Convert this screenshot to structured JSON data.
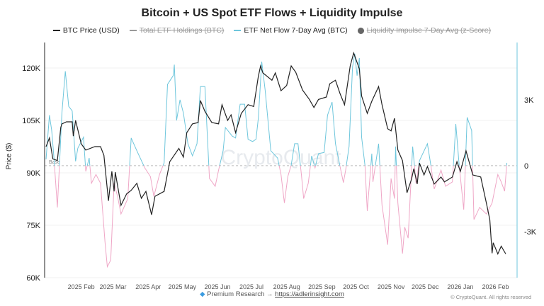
{
  "chart_data": {
    "type": "line",
    "title": "Bitcoin + US Spot ETF Flows + Liquidity Impulse",
    "ylabel": "Price ($)",
    "ylim": [
      60000,
      127300
    ],
    "y2lim": [
      -5100,
      5610
    ],
    "xlim": [
      "2025-01-01",
      "2026-02-20"
    ],
    "grid": true,
    "legend_position": "top",
    "watermark": "CryptoQuant",
    "baseline_label": "Base",
    "y_ticks": [
      {
        "v": 60000,
        "label": "60K"
      },
      {
        "v": 75000,
        "label": "75K"
      },
      {
        "v": 90000,
        "label": "90K"
      },
      {
        "v": 105000,
        "label": "105K"
      },
      {
        "v": 120000,
        "label": "120K"
      }
    ],
    "y2_ticks": [
      {
        "v": -3000,
        "label": "-3K"
      },
      {
        "v": 0,
        "label": "0"
      },
      {
        "v": 3000,
        "label": "3K"
      }
    ],
    "x_ticks": [
      {
        "d": "2025-02-01",
        "label": "2025 Feb"
      },
      {
        "d": "2025-03-01",
        "label": "2025 Mar"
      },
      {
        "d": "2025-04-01",
        "label": "2025 Apr"
      },
      {
        "d": "2025-05-01",
        "label": "2025 May"
      },
      {
        "d": "2025-06-01",
        "label": "2025 Jun"
      },
      {
        "d": "2025-07-01",
        "label": "2025 Jul"
      },
      {
        "d": "2025-08-01",
        "label": "2025 Aug"
      },
      {
        "d": "2025-09-01",
        "label": "2025 Sep"
      },
      {
        "d": "2025-10-01",
        "label": "2025 Oct"
      },
      {
        "d": "2025-11-01",
        "label": "2025 Nov"
      },
      {
        "d": "2025-12-01",
        "label": "2025 Dec"
      },
      {
        "d": "2026-01-01",
        "label": "2026 Jan"
      },
      {
        "d": "2026-02-01",
        "label": "2026 Feb"
      }
    ],
    "legend": [
      {
        "name": "BTC Price (USD)",
        "color": "#222222",
        "visible": true,
        "marker": "line"
      },
      {
        "name": "Total ETF Holdings (BTC)",
        "color": "#999999",
        "visible": false,
        "marker": "line"
      },
      {
        "name": "ETF Net Flow 7-Day Avg (BTC)",
        "color": "#6ec6dc",
        "visible": true,
        "marker": "line"
      },
      {
        "name": "Liquidity Impulse 7-Day Avg (z-Score)",
        "color": "#666666",
        "visible": false,
        "marker": "dot"
      }
    ],
    "colors": {
      "price": "#222222",
      "flow_positive": "#6ec6dc",
      "flow_negative": "#efa6c6",
      "right_axis": "#6ec6dc"
    },
    "series": [
      {
        "name": "BTC Price (USD)",
        "axis": "left",
        "points": [
          [
            "2025-01-01",
            97500
          ],
          [
            "2025-01-04",
            100000
          ],
          [
            "2025-01-07",
            94000
          ],
          [
            "2025-01-11",
            93500
          ],
          [
            "2025-01-14",
            103000
          ],
          [
            "2025-01-15",
            104000
          ],
          [
            "2025-01-19",
            104600
          ],
          [
            "2025-01-24",
            104600
          ],
          [
            "2025-01-25",
            100500
          ],
          [
            "2025-01-27",
            105000
          ],
          [
            "2025-02-01",
            98300
          ],
          [
            "2025-02-05",
            96500
          ],
          [
            "2025-02-13",
            97500
          ],
          [
            "2025-02-18",
            97500
          ],
          [
            "2025-02-21",
            95000
          ],
          [
            "2025-02-25",
            82000
          ],
          [
            "2025-02-28",
            90400
          ],
          [
            "2025-03-02",
            84700
          ],
          [
            "2025-03-03",
            90200
          ],
          [
            "2025-03-08",
            80700
          ],
          [
            "2025-03-13",
            84000
          ],
          [
            "2025-03-17",
            85000
          ],
          [
            "2025-03-22",
            87000
          ],
          [
            "2025-03-26",
            82700
          ],
          [
            "2025-03-30",
            84700
          ],
          [
            "2025-04-04",
            78000
          ],
          [
            "2025-04-07",
            83300
          ],
          [
            "2025-04-15",
            84700
          ],
          [
            "2025-04-20",
            93200
          ],
          [
            "2025-04-28",
            97000
          ],
          [
            "2025-05-02",
            94500
          ],
          [
            "2025-05-05",
            101500
          ],
          [
            "2025-05-10",
            104000
          ],
          [
            "2025-05-15",
            104400
          ],
          [
            "2025-05-17",
            110700
          ],
          [
            "2025-05-21",
            107600
          ],
          [
            "2025-05-27",
            104400
          ],
          [
            "2025-06-02",
            104000
          ],
          [
            "2025-06-05",
            109500
          ],
          [
            "2025-06-10",
            105000
          ],
          [
            "2025-06-13",
            106600
          ],
          [
            "2025-06-17",
            101500
          ],
          [
            "2025-06-22",
            107000
          ],
          [
            "2025-06-28",
            109500
          ],
          [
            "2025-07-03",
            109000
          ],
          [
            "2025-07-07",
            117600
          ],
          [
            "2025-07-09",
            120600
          ],
          [
            "2025-07-11",
            118600
          ],
          [
            "2025-07-19",
            116500
          ],
          [
            "2025-07-22",
            118600
          ],
          [
            "2025-07-27",
            113500
          ],
          [
            "2025-08-01",
            115000
          ],
          [
            "2025-08-05",
            120600
          ],
          [
            "2025-08-09",
            118800
          ],
          [
            "2025-08-15",
            113700
          ],
          [
            "2025-08-21",
            111000
          ],
          [
            "2025-08-25",
            108700
          ],
          [
            "2025-08-29",
            111000
          ],
          [
            "2025-09-05",
            111700
          ],
          [
            "2025-09-08",
            115500
          ],
          [
            "2025-09-13",
            116500
          ],
          [
            "2025-09-17",
            112700
          ],
          [
            "2025-09-21",
            109500
          ],
          [
            "2025-09-26",
            120600
          ],
          [
            "2025-09-29",
            124300
          ],
          [
            "2025-10-04",
            119800
          ],
          [
            "2025-10-06",
            112000
          ],
          [
            "2025-10-11",
            107000
          ],
          [
            "2025-10-15",
            110500
          ],
          [
            "2025-10-21",
            114700
          ],
          [
            "2025-10-24",
            109500
          ],
          [
            "2025-10-29",
            102600
          ],
          [
            "2025-11-01",
            102000
          ],
          [
            "2025-11-04",
            105600
          ],
          [
            "2025-11-07",
            96500
          ],
          [
            "2025-11-11",
            93500
          ],
          [
            "2025-11-15",
            84300
          ],
          [
            "2025-11-19",
            88200
          ],
          [
            "2025-11-21",
            91200
          ],
          [
            "2025-11-24",
            86800
          ],
          [
            "2025-11-26",
            92800
          ],
          [
            "2025-11-30",
            89400
          ],
          [
            "2025-12-03",
            91800
          ],
          [
            "2025-12-09",
            86800
          ],
          [
            "2025-12-15",
            88800
          ],
          [
            "2025-12-18",
            87400
          ],
          [
            "2025-12-25",
            88800
          ],
          [
            "2025-12-29",
            93200
          ],
          [
            "2026-01-01",
            90400
          ],
          [
            "2026-01-06",
            96300
          ],
          [
            "2026-01-12",
            89400
          ],
          [
            "2026-01-19",
            88800
          ],
          [
            "2026-01-24",
            81300
          ],
          [
            "2026-01-27",
            76600
          ],
          [
            "2026-01-29",
            67000
          ],
          [
            "2026-01-30",
            70000
          ],
          [
            "2026-02-03",
            66800
          ],
          [
            "2026-02-06",
            69000
          ],
          [
            "2026-02-10",
            66800
          ]
        ]
      },
      {
        "name": "ETF Net Flow 7-Day Avg (BTC)",
        "axis": "right",
        "points": [
          [
            "2025-01-01",
            290
          ],
          [
            "2025-01-04",
            2300
          ],
          [
            "2025-01-06",
            1600
          ],
          [
            "2025-01-08",
            350
          ],
          [
            "2025-01-11",
            -1900
          ],
          [
            "2025-01-13",
            200
          ],
          [
            "2025-01-15",
            2400
          ],
          [
            "2025-01-18",
            4300
          ],
          [
            "2025-01-21",
            2700
          ],
          [
            "2025-01-24",
            2500
          ],
          [
            "2025-01-27",
            200
          ],
          [
            "2025-01-29",
            800
          ],
          [
            "2025-02-03",
            1300
          ],
          [
            "2025-02-05",
            -260
          ],
          [
            "2025-02-08",
            350
          ],
          [
            "2025-02-10",
            -800
          ],
          [
            "2025-02-14",
            -400
          ],
          [
            "2025-02-18",
            -800
          ],
          [
            "2025-02-22",
            -3500
          ],
          [
            "2025-02-24",
            -4600
          ],
          [
            "2025-02-27",
            -4300
          ],
          [
            "2025-03-02",
            -800
          ],
          [
            "2025-03-05",
            -1400
          ],
          [
            "2025-03-08",
            -2200
          ],
          [
            "2025-03-14",
            -1500
          ],
          [
            "2025-03-17",
            1260
          ],
          [
            "2025-03-22",
            680
          ],
          [
            "2025-03-29",
            -100
          ],
          [
            "2025-04-03",
            -500
          ],
          [
            "2025-04-06",
            -1400
          ],
          [
            "2025-04-11",
            -400
          ],
          [
            "2025-04-15",
            130
          ],
          [
            "2025-04-18",
            3700
          ],
          [
            "2025-04-23",
            4100
          ],
          [
            "2025-04-24",
            4600
          ],
          [
            "2025-04-26",
            2060
          ],
          [
            "2025-04-29",
            3000
          ],
          [
            "2025-05-02",
            2400
          ],
          [
            "2025-05-06",
            1000
          ],
          [
            "2025-05-10",
            450
          ],
          [
            "2025-05-14",
            1000
          ],
          [
            "2025-05-17",
            3600
          ],
          [
            "2025-05-21",
            3600
          ],
          [
            "2025-05-25",
            -580
          ],
          [
            "2025-05-30",
            -940
          ],
          [
            "2025-06-02",
            -200
          ],
          [
            "2025-06-06",
            680
          ],
          [
            "2025-06-08",
            1740
          ],
          [
            "2025-06-14",
            1350
          ],
          [
            "2025-06-17",
            1260
          ],
          [
            "2025-06-21",
            2800
          ],
          [
            "2025-06-25",
            2800
          ],
          [
            "2025-06-28",
            1200
          ],
          [
            "2025-07-02",
            1100
          ],
          [
            "2025-07-05",
            1200
          ],
          [
            "2025-07-07",
            2160
          ],
          [
            "2025-07-10",
            4740
          ],
          [
            "2025-07-13",
            3450
          ],
          [
            "2025-07-18",
            680
          ],
          [
            "2025-07-24",
            350
          ],
          [
            "2025-07-27",
            -400
          ],
          [
            "2025-07-30",
            -1700
          ],
          [
            "2025-08-02",
            -500
          ],
          [
            "2025-08-05",
            30
          ],
          [
            "2025-08-08",
            1000
          ],
          [
            "2025-08-11",
            1000
          ],
          [
            "2025-08-14",
            -400
          ],
          [
            "2025-08-16",
            -1500
          ],
          [
            "2025-08-20",
            -800
          ],
          [
            "2025-08-23",
            450
          ],
          [
            "2025-08-26",
            -100
          ],
          [
            "2025-08-29",
            550
          ],
          [
            "2025-09-03",
            600
          ],
          [
            "2025-09-06",
            2300
          ],
          [
            "2025-09-10",
            2900
          ],
          [
            "2025-09-13",
            1000
          ],
          [
            "2025-09-17",
            -30
          ],
          [
            "2025-09-20",
            -770
          ],
          [
            "2025-09-22",
            -200
          ],
          [
            "2025-09-25",
            870
          ],
          [
            "2025-09-28",
            4500
          ],
          [
            "2025-09-30",
            5100
          ],
          [
            "2025-10-02",
            4100
          ],
          [
            "2025-10-04",
            4900
          ],
          [
            "2025-10-06",
            1300
          ],
          [
            "2025-10-09",
            0
          ],
          [
            "2025-10-11",
            -2060
          ],
          [
            "2025-10-15",
            550
          ],
          [
            "2025-10-16",
            -740
          ],
          [
            "2025-10-21",
            1000
          ],
          [
            "2025-10-24",
            -1800
          ],
          [
            "2025-10-29",
            -3600
          ],
          [
            "2025-11-01",
            -580
          ],
          [
            "2025-11-04",
            -1500
          ],
          [
            "2025-11-05",
            870
          ],
          [
            "2025-11-07",
            -1700
          ],
          [
            "2025-11-11",
            -4000
          ],
          [
            "2025-11-13",
            -2800
          ],
          [
            "2025-11-16",
            -3300
          ],
          [
            "2025-11-20",
            870
          ],
          [
            "2025-11-23",
            -800
          ],
          [
            "2025-11-26",
            230
          ],
          [
            "2025-12-03",
            1000
          ],
          [
            "2025-12-06",
            30
          ],
          [
            "2025-12-09",
            -1060
          ],
          [
            "2025-12-15",
            -200
          ],
          [
            "2025-12-19",
            -940
          ],
          [
            "2025-12-25",
            -740
          ],
          [
            "2025-12-28",
            1900
          ],
          [
            "2025-12-31",
            0
          ],
          [
            "2026-01-04",
            -2000
          ],
          [
            "2026-01-07",
            2200
          ],
          [
            "2026-01-11",
            1600
          ],
          [
            "2026-01-13",
            -2450
          ],
          [
            "2026-01-18",
            -1900
          ],
          [
            "2026-01-24",
            -2200
          ],
          [
            "2026-01-29",
            -1700
          ],
          [
            "2026-02-03",
            -400
          ],
          [
            "2026-02-06",
            -740
          ],
          [
            "2026-02-09",
            -1160
          ],
          [
            "2026-02-11",
            130
          ]
        ]
      }
    ]
  },
  "footer": {
    "gem_icon": "gem-icon",
    "text": "Premium Research → ",
    "link": "https://adlerinsight.com",
    "copyright": "© CryptoQuant. All rights reserved"
  }
}
